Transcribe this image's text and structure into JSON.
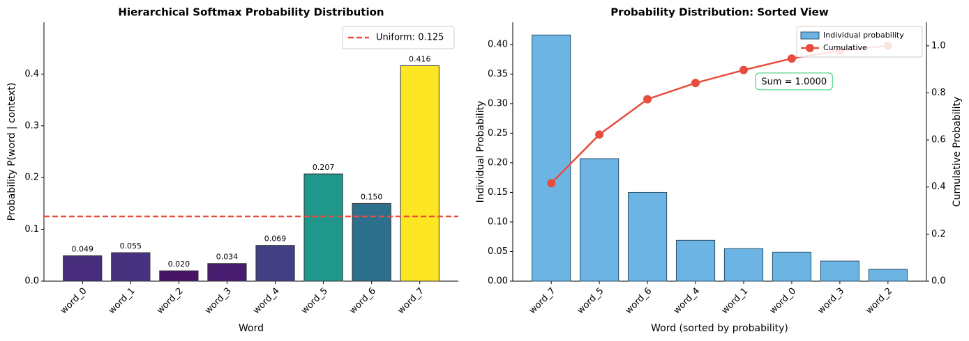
{
  "chart_data": [
    {
      "type": "bar",
      "title": "Hierarchical Softmax Probability Distribution",
      "x_label": "Word",
      "y_label": "Probability P(word | context)",
      "categories": [
        "word_0",
        "word_1",
        "word_2",
        "word_3",
        "word_4",
        "word_5",
        "word_6",
        "word_7"
      ],
      "values": [
        0.049,
        0.055,
        0.02,
        0.034,
        0.069,
        0.207,
        0.15,
        0.416
      ],
      "value_labels": [
        "0.049",
        "0.055",
        "0.020",
        "0.034",
        "0.069",
        "0.207",
        "0.150",
        "0.416"
      ],
      "colors": [
        "#472d7b",
        "#46327e",
        "#471365",
        "#481d6f",
        "#423f85",
        "#1f988b",
        "#2d708e",
        "#fde725"
      ],
      "ylim": [
        0,
        0.5
      ],
      "yticks": [
        {
          "value": 0,
          "label": "0.0"
        },
        0.1,
        0.2,
        0.3,
        0.4
      ],
      "reference_line": {
        "value": 0.125,
        "label": "Uniform: 0.125",
        "color": "#e74c3c"
      },
      "legend": "upper right"
    },
    {
      "type": "bar",
      "title": "Probability Distribution: Sorted View",
      "x_label": "Word (sorted by probability)",
      "y_label": "Individual Probability",
      "y2_label": "Cumulative Probability",
      "categories": [
        "word_7",
        "word_5",
        "word_6",
        "word_4",
        "word_1",
        "word_0",
        "word_3",
        "word_2"
      ],
      "series": [
        {
          "name": "Individual probability",
          "color": "#6cb4e4",
          "values": [
            0.416,
            0.207,
            0.15,
            0.069,
            0.055,
            0.049,
            0.034,
            0.02
          ]
        },
        {
          "name": "Cumulative",
          "color": "#e74c3c",
          "type": "line",
          "axis": "y2",
          "values": [
            0.416,
            0.623,
            0.773,
            0.842,
            0.897,
            0.946,
            0.98,
            1.0
          ]
        }
      ],
      "ylim": [
        0,
        0.4375
      ],
      "yticks": [
        {
          "value": 0,
          "label": "0.00"
        },
        0.05,
        {
          "value": 0.1,
          "label": "0.10"
        },
        0.15,
        {
          "value": 0.2,
          "label": "0.20"
        },
        0.25,
        {
          "value": 0.3,
          "label": "0.30"
        },
        0.35,
        {
          "value": 0.4,
          "label": "0.40"
        }
      ],
      "y2lim": [
        0,
        1.1
      ],
      "y2ticks": [
        {
          "value": 0,
          "label": "0.0"
        },
        0.2,
        0.4,
        0.6,
        0.8,
        {
          "value": 1,
          "label": "1.0"
        }
      ],
      "annotation": "Sum = 1.0000",
      "legend": "upper right"
    }
  ]
}
